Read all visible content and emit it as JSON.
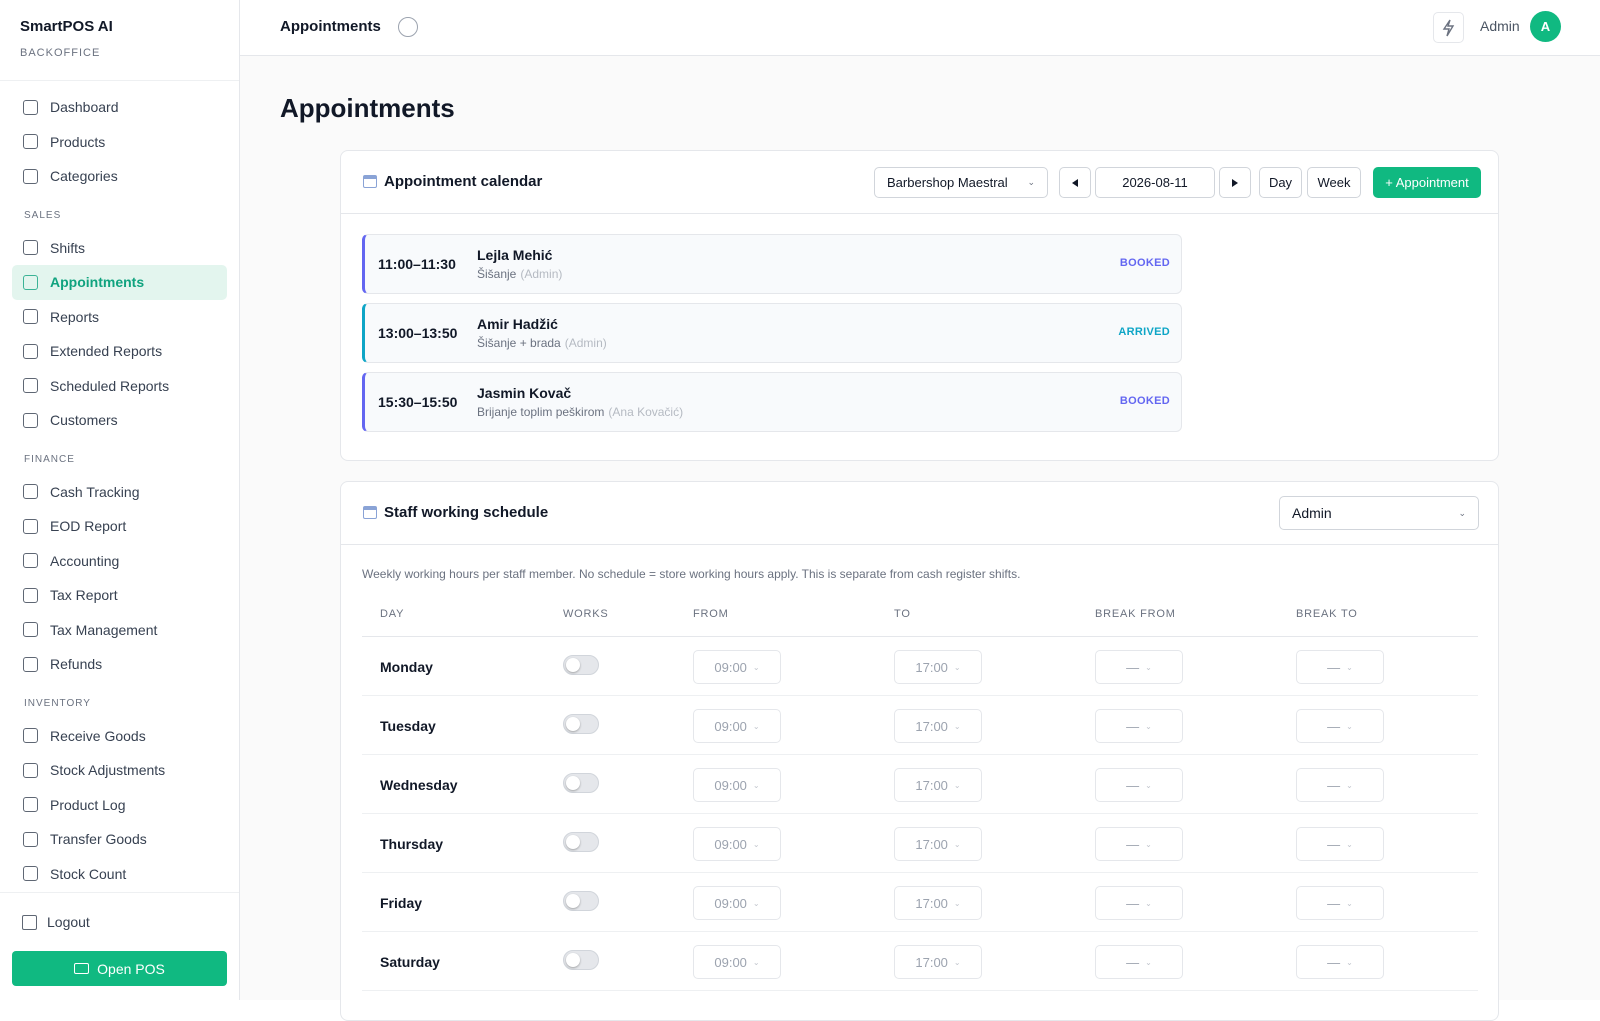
{
  "sidebar": {
    "brand": "SmartPOS AI",
    "subtitle": "BACKOFFICE",
    "nav": [
      {
        "items": [
          "Dashboard",
          "Products",
          "Categories"
        ]
      },
      {
        "title": "SALES",
        "items": [
          "Shifts",
          "Appointments",
          "Reports",
          "Extended Reports",
          "Scheduled Reports",
          "Customers"
        ]
      },
      {
        "title": "FINANCE",
        "items": [
          "Cash Tracking",
          "EOD Report",
          "Accounting",
          "Tax Report",
          "Tax Management",
          "Refunds"
        ]
      },
      {
        "title": "INVENTORY",
        "items": [
          "Receive Goods",
          "Stock Adjustments",
          "Product Log",
          "Transfer Goods",
          "Stock Count"
        ]
      }
    ],
    "active": "Appointments",
    "logout": "Logout",
    "open_pos": "Open POS"
  },
  "header": {
    "title": "Appointments",
    "user": "Admin",
    "avatar": "A"
  },
  "page_title": "Appointments",
  "calendar": {
    "title": "Appointment calendar",
    "location": "Barbershop Maestral",
    "date": "2026-08-11",
    "views": [
      "Day",
      "Week"
    ],
    "add_button": "+ Appointment",
    "appointments": [
      {
        "time": "11:00–11:30",
        "client": "Lejla Mehić",
        "service": "Šišanje",
        "staff": "(Admin)",
        "status": "BOOKED",
        "color": "#6366f1"
      },
      {
        "time": "13:00–13:50",
        "client": "Amir Hadžić",
        "service": "Šišanje + brada",
        "staff": "(Admin)",
        "status": "ARRIVED",
        "color": "#0ea5c6"
      },
      {
        "time": "15:30–15:50",
        "client": "Jasmin Kovač",
        "service": "Brijanje toplim peškirom",
        "staff": "(Ana Kovačić)",
        "status": "BOOKED",
        "color": "#6366f1"
      }
    ]
  },
  "schedule": {
    "title": "Staff working schedule",
    "staff": "Admin",
    "note": "Weekly working hours per staff member. No schedule = store working hours apply. This is separate from cash register shifts.",
    "columns": [
      "DAY",
      "WORKS",
      "FROM",
      "TO",
      "BREAK FROM",
      "BREAK TO"
    ],
    "rows": [
      {
        "day": "Monday",
        "from": "09:00",
        "to": "17:00",
        "break_from": "—",
        "break_to": "—"
      },
      {
        "day": "Tuesday",
        "from": "09:00",
        "to": "17:00",
        "break_from": "—",
        "break_to": "—"
      },
      {
        "day": "Wednesday",
        "from": "09:00",
        "to": "17:00",
        "break_from": "—",
        "break_to": "—"
      },
      {
        "day": "Thursday",
        "from": "09:00",
        "to": "17:00",
        "break_from": "—",
        "break_to": "—"
      },
      {
        "day": "Friday",
        "from": "09:00",
        "to": "17:00",
        "break_from": "—",
        "break_to": "—"
      },
      {
        "day": "Saturday",
        "from": "09:00",
        "to": "17:00",
        "break_from": "—",
        "break_to": "—"
      }
    ]
  }
}
